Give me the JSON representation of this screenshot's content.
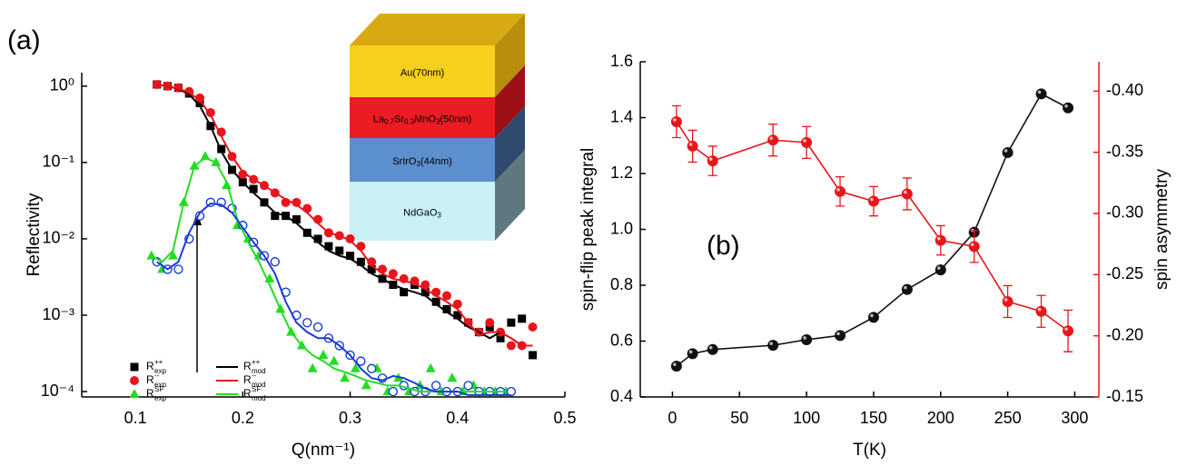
{
  "chart_data": [
    {
      "type": "scatter",
      "panel_label": "(a)",
      "x_label": "Q(nm⁻¹)",
      "y_label": "Reflectivity",
      "log_y": true,
      "xlim": [
        0.05,
        0.5
      ],
      "xticks": [
        0.1,
        0.2,
        0.3,
        0.4,
        0.5
      ],
      "ylim": [
        8.5e-05,
        1.5
      ],
      "yticks": [
        {
          "value": 1,
          "label": "10⁰"
        },
        {
          "value": 0.1,
          "label": "10⁻¹"
        },
        {
          "value": 0.01,
          "label": "10⁻²"
        },
        {
          "value": 0.001,
          "label": "10⁻³"
        },
        {
          "value": 0.0001,
          "label": "10⁻⁴"
        }
      ],
      "series": [
        {
          "name": "R",
          "name_sup": "++",
          "name_sub": "exp",
          "color": "#000000",
          "marker": "square",
          "x": [
            0.12,
            0.13,
            0.14,
            0.15,
            0.16,
            0.17,
            0.18,
            0.19,
            0.2,
            0.21,
            0.22,
            0.23,
            0.24,
            0.25,
            0.26,
            0.27,
            0.28,
            0.29,
            0.3,
            0.31,
            0.32,
            0.33,
            0.34,
            0.35,
            0.36,
            0.37,
            0.38,
            0.39,
            0.4,
            0.41,
            0.42,
            0.43,
            0.44,
            0.45,
            0.46,
            0.47
          ],
          "values": [
            1.05,
            1.0,
            0.95,
            0.8,
            0.6,
            0.3,
            0.15,
            0.08,
            0.055,
            0.045,
            0.03,
            0.02,
            0.02,
            0.018,
            0.012,
            0.01,
            0.008,
            0.007,
            0.006,
            0.005,
            0.004,
            0.003,
            0.0025,
            0.002,
            0.0025,
            0.002,
            0.0015,
            0.0012,
            0.001,
            0.0008,
            0.0006,
            0.0007,
            0.0005,
            0.0008,
            0.0009,
            0.0003
          ]
        },
        {
          "name": "R",
          "name_sup": "--",
          "name_sub": "exp",
          "color": "#e8161b",
          "marker": "circle",
          "x": [
            0.12,
            0.13,
            0.14,
            0.15,
            0.16,
            0.17,
            0.18,
            0.19,
            0.2,
            0.21,
            0.22,
            0.23,
            0.24,
            0.25,
            0.26,
            0.27,
            0.28,
            0.29,
            0.3,
            0.31,
            0.32,
            0.33,
            0.34,
            0.35,
            0.36,
            0.37,
            0.38,
            0.39,
            0.4,
            0.41,
            0.42,
            0.43,
            0.44,
            0.45,
            0.46,
            0.47
          ],
          "values": [
            1.05,
            1.0,
            0.95,
            0.85,
            0.7,
            0.45,
            0.25,
            0.12,
            0.07,
            0.06,
            0.05,
            0.04,
            0.03,
            0.03,
            0.025,
            0.018,
            0.012,
            0.011,
            0.01,
            0.008,
            0.005,
            0.004,
            0.0035,
            0.003,
            0.0028,
            0.0025,
            0.002,
            0.0018,
            0.0014,
            0.0008,
            0.0006,
            0.0008,
            0.0006,
            0.0004,
            0.0004,
            0.0007
          ]
        },
        {
          "name": "R",
          "name_sup": "SF",
          "name_sub": "exp",
          "color": "#22dd22",
          "marker": "triangle",
          "x": [
            0.115,
            0.125,
            0.135,
            0.145,
            0.155,
            0.165,
            0.175,
            0.185,
            0.195,
            0.205,
            0.215,
            0.225,
            0.235,
            0.245,
            0.255,
            0.265,
            0.275,
            0.285,
            0.295,
            0.305,
            0.315,
            0.325,
            0.335,
            0.345,
            0.355,
            0.365,
            0.375,
            0.385,
            0.395,
            0.405,
            0.415,
            0.425,
            0.435,
            0.445
          ],
          "values": [
            0.006,
            0.004,
            0.006,
            0.03,
            0.09,
            0.12,
            0.1,
            0.05,
            0.015,
            0.01,
            0.006,
            0.003,
            0.0012,
            0.0006,
            0.0004,
            0.0002,
            0.0003,
            0.00025,
            0.00015,
            0.0002,
            0.00012,
            0.0002,
            0.0001,
            0.00015,
            0.0001,
            0.00012,
            0.0002,
            0.0001,
            0.00015,
            0.0001,
            0.00012,
            0.0001,
            0.0001,
            0.0001
          ]
        },
        {
          "color": "#1a3bd6",
          "marker": "open-circle",
          "x": [
            0.12,
            0.13,
            0.14,
            0.15,
            0.16,
            0.17,
            0.18,
            0.19,
            0.2,
            0.21,
            0.22,
            0.23,
            0.24,
            0.25,
            0.26,
            0.27,
            0.28,
            0.29,
            0.3,
            0.31,
            0.32,
            0.33,
            0.34,
            0.35,
            0.36,
            0.37,
            0.38,
            0.39,
            0.4,
            0.41,
            0.42,
            0.43,
            0.44,
            0.45
          ],
          "values": [
            0.005,
            0.004,
            0.004,
            0.01,
            0.02,
            0.03,
            0.03,
            0.025,
            0.015,
            0.009,
            0.006,
            0.005,
            0.002,
            0.001,
            0.0008,
            0.0007,
            0.0005,
            0.0004,
            0.0003,
            0.00025,
            0.0002,
            0.00015,
            0.0001,
            0.00012,
            0.0001,
            0.0001,
            0.00012,
            0.0001,
            0.0001,
            0.00012,
            0.0001,
            0.0001,
            0.0001,
            0.0001
          ]
        },
        {
          "name": "R",
          "name_sup": "++",
          "name_sub": "mod",
          "color": "#000000",
          "marker": "line",
          "x": [
            0.12,
            0.13,
            0.14,
            0.15,
            0.16,
            0.17,
            0.18,
            0.19,
            0.2,
            0.21,
            0.22,
            0.23,
            0.24,
            0.25,
            0.26,
            0.27,
            0.28,
            0.29,
            0.3,
            0.31,
            0.32,
            0.33,
            0.34,
            0.35,
            0.36,
            0.37,
            0.38,
            0.39,
            0.4,
            0.41,
            0.42,
            0.43,
            0.44,
            0.45,
            0.46,
            0.47
          ],
          "values": [
            1.05,
            1.0,
            0.92,
            0.78,
            0.55,
            0.3,
            0.14,
            0.08,
            0.055,
            0.04,
            0.03,
            0.022,
            0.02,
            0.016,
            0.012,
            0.009,
            0.007,
            0.006,
            0.0055,
            0.0045,
            0.0035,
            0.003,
            0.0025,
            0.0022,
            0.002,
            0.0018,
            0.0014,
            0.0011,
            0.0009,
            0.0007,
            0.0006,
            0.0005,
            0.0006,
            0.0005,
            0.0004,
            0.0004
          ]
        },
        {
          "name": "R",
          "name_sup": "--",
          "name_sub": "mod",
          "color": "#e8161b",
          "marker": "line",
          "x": [
            0.12,
            0.13,
            0.14,
            0.15,
            0.16,
            0.17,
            0.18,
            0.19,
            0.2,
            0.21,
            0.22,
            0.23,
            0.24,
            0.25,
            0.26,
            0.27,
            0.28,
            0.29,
            0.3,
            0.31,
            0.32,
            0.33,
            0.34,
            0.35,
            0.36,
            0.37,
            0.38,
            0.39,
            0.4,
            0.41,
            0.42,
            0.43,
            0.44,
            0.45,
            0.46,
            0.47
          ],
          "values": [
            1.05,
            1.0,
            0.93,
            0.82,
            0.65,
            0.42,
            0.22,
            0.12,
            0.075,
            0.06,
            0.05,
            0.04,
            0.033,
            0.028,
            0.022,
            0.016,
            0.012,
            0.011,
            0.0095,
            0.007,
            0.0045,
            0.0035,
            0.003,
            0.0028,
            0.0026,
            0.0022,
            0.0018,
            0.0015,
            0.0012,
            0.0008,
            0.00055,
            0.0006,
            0.0006,
            0.0005,
            0.0004,
            0.0004
          ]
        },
        {
          "name": "R",
          "name_sup": "SF",
          "name_sub": "mod",
          "color": "#22dd22",
          "marker": "line",
          "x": [
            0.115,
            0.125,
            0.135,
            0.145,
            0.155,
            0.165,
            0.175,
            0.185,
            0.195,
            0.205,
            0.215,
            0.225,
            0.235,
            0.245,
            0.255,
            0.265,
            0.275,
            0.285,
            0.295,
            0.305,
            0.315,
            0.325,
            0.335,
            0.345,
            0.355,
            0.365,
            0.375,
            0.385,
            0.395,
            0.405,
            0.415,
            0.425,
            0.435,
            0.445
          ],
          "values": [
            0.006,
            0.005,
            0.007,
            0.03,
            0.09,
            0.115,
            0.1,
            0.055,
            0.018,
            0.009,
            0.005,
            0.0025,
            0.0012,
            0.0006,
            0.0004,
            0.0003,
            0.00025,
            0.0002,
            0.00018,
            0.00016,
            0.00014,
            0.00013,
            0.00012,
            0.00012,
            0.00011,
            0.0001,
            0.0001,
            0.0001,
            0.0001,
            0.0001,
            0.0001,
            0.0001,
            0.0001,
            0.0001
          ]
        },
        {
          "color": "#1a3bd6",
          "marker": "line",
          "x": [
            0.12,
            0.13,
            0.14,
            0.15,
            0.16,
            0.17,
            0.18,
            0.19,
            0.2,
            0.21,
            0.22,
            0.23,
            0.24,
            0.25,
            0.26,
            0.27,
            0.28,
            0.29,
            0.3,
            0.31,
            0.32,
            0.33,
            0.34,
            0.35,
            0.36,
            0.37,
            0.38,
            0.39,
            0.4,
            0.41,
            0.42,
            0.43,
            0.44,
            0.45
          ],
          "values": [
            0.005,
            0.004,
            0.005,
            0.012,
            0.022,
            0.029,
            0.028,
            0.022,
            0.014,
            0.009,
            0.006,
            0.0035,
            0.0015,
            0.0008,
            0.0006,
            0.0005,
            0.0005,
            0.0004,
            0.0003,
            0.0002,
            0.00015,
            0.00014,
            0.00016,
            0.00015,
            0.00013,
            0.00011,
            0.0001,
            0.0001,
            0.0001,
            9e-05,
            9e-05,
            9e-05,
            9e-05,
            9e-05
          ]
        }
      ],
      "inset": {
        "layers": [
          {
            "color": "#f7cf1d",
            "top_color": "#d9a914",
            "side_color": "#b88e0c",
            "label": [
              {
                "text": "Au(70nm)"
              }
            ]
          },
          {
            "color": "#ec1c24",
            "side_color": "#9c1016",
            "label": [
              {
                "text": "La"
              },
              {
                "text": "0.7",
                "sub": true
              },
              {
                "text": "Sr"
              },
              {
                "text": "0.3",
                "sub": true
              },
              {
                "text": "MnO"
              },
              {
                "text": "3",
                "sub": true
              },
              {
                "text": "(50nm)"
              }
            ]
          },
          {
            "color": "#5c8fcd",
            "side_color": "#2e4a6e",
            "label": [
              {
                "text": "SrIrO"
              },
              {
                "text": "3",
                "sub": true
              },
              {
                "text": "(44nm)"
              }
            ]
          },
          {
            "color": "#c9f1f6",
            "side_color": "#5f7880",
            "label": [
              {
                "text": "NdGaO"
              },
              {
                "text": "3",
                "sub": true
              }
            ]
          }
        ]
      }
    },
    {
      "type": "line",
      "panel_label": "(b)",
      "x_label": "T(K)",
      "y_label": "spin-flip peak integral",
      "y2_label": "spin asymmetry",
      "y2_color": "#e8161b",
      "xlim": [
        -24,
        318
      ],
      "xticks": [
        0,
        50,
        100,
        150,
        200,
        250,
        300
      ],
      "ylim": [
        0.4,
        1.6
      ],
      "yticks": [
        0.4,
        0.6,
        0.8,
        {
          "value": 1,
          "label": "1.0"
        },
        1.2,
        1.4,
        1.6
      ],
      "y2lim": [
        -0.15,
        -0.424
      ],
      "y2ticks": [
        {
          "value": -0.4,
          "label": "-0.40"
        },
        -0.35,
        {
          "value": -0.3,
          "label": "-0.30"
        },
        -0.25,
        {
          "value": -0.2,
          "label": "-0.20"
        },
        -0.15
      ],
      "series": [
        {
          "color": "#111111",
          "x": [
            3,
            15,
            30,
            75,
            100,
            125,
            150,
            175,
            200,
            225,
            250,
            275,
            295
          ],
          "values": [
            0.51,
            0.555,
            0.57,
            0.585,
            0.605,
            0.62,
            0.685,
            0.785,
            0.855,
            0.99,
            1.275,
            1.485,
            1.435
          ]
        },
        {
          "color": "#e8161b",
          "axis": "y2",
          "x": [
            3,
            15,
            30,
            75,
            100,
            125,
            150,
            175,
            200,
            225,
            250,
            275,
            295
          ],
          "values": [
            -0.375,
            -0.355,
            -0.343,
            -0.36,
            -0.358,
            -0.318,
            -0.31,
            -0.316,
            -0.278,
            -0.273,
            -0.228,
            -0.22,
            -0.204
          ],
          "errors": [
            0.013,
            0.013,
            0.012,
            0.013,
            0.013,
            0.012,
            0.012,
            0.013,
            0.012,
            0.013,
            0.013,
            0.013,
            0.017
          ]
        }
      ]
    }
  ]
}
